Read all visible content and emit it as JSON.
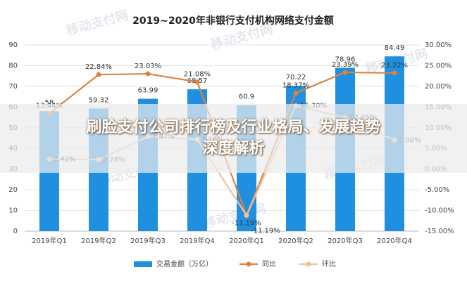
{
  "chart_data": {
    "type": "bar",
    "title": "2019~2020年非银行支付机构网络支付金额",
    "categories": [
      "2019年Q1",
      "2019年Q2",
      "2019年Q3",
      "2019年Q4",
      "2020年Q1",
      "2020年Q2",
      "2020年Q3",
      "2020年Q4"
    ],
    "series": [
      {
        "name": "交易金额（万亿）",
        "type": "bar",
        "color": "#1f8fe0",
        "values": [
          58,
          59.32,
          63.99,
          68.57,
          60.9,
          70.22,
          78.96,
          84.49
        ]
      },
      {
        "name": "同比",
        "type": "line",
        "axis": "y2",
        "color": "#e0823d",
        "values": [
          13.44,
          22.84,
          23.03,
          21.08,
          -11.19,
          18.37,
          23.39,
          23.22
        ],
        "value_labels": [
          "13.44%",
          "22.84%",
          "23.03%",
          "21.08%",
          "-11.19%",
          "18.37%",
          "23.39%",
          "23.22%"
        ]
      },
      {
        "name": "环比",
        "type": "line",
        "axis": "y2",
        "color": "#f0c29c",
        "values": [
          2.42,
          2.28,
          7.87,
          7.16,
          -11.19,
          15.3,
          12.45,
          7.0
        ],
        "value_labels": [
          "2.42%",
          "2.28%",
          "7.87%",
          "7.16%",
          "-11.19%",
          "15.30%",
          "12.45%",
          "7.00%"
        ]
      }
    ],
    "ylim": [
      0,
      90
    ],
    "yticks": [
      0,
      10,
      20,
      30,
      40,
      50,
      60,
      70,
      80,
      90
    ],
    "y2lim": [
      -15,
      30
    ],
    "y2ticks": [
      {
        "value": -15,
        "label": "-15.00%"
      },
      {
        "value": -10,
        "label": "-10.00%"
      },
      {
        "value": -5,
        "label": "-5.00%"
      },
      {
        "value": 0,
        "label": "0.00%"
      },
      {
        "value": 5,
        "label": "5.00%"
      },
      {
        "value": 10,
        "label": "10.00%"
      },
      {
        "value": 15,
        "label": "15.00%"
      },
      {
        "value": 20,
        "label": "20.00%"
      },
      {
        "value": 25,
        "label": "25.00%"
      },
      {
        "value": 30,
        "label": "30.00%"
      }
    ],
    "grid": true,
    "legend": "bottom"
  },
  "watermark": "移动支付网",
  "banner": {
    "lines": [
      "刷脸支付公司排行榜及行业格局、发展趋势",
      "深度解析"
    ]
  }
}
